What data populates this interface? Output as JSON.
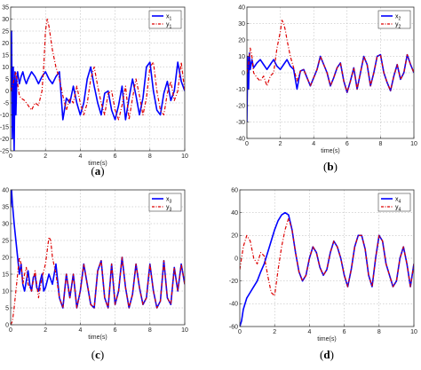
{
  "chart_data": [
    {
      "type": "line",
      "caption": "(a)",
      "xlabel": "time(s)",
      "xlim": [
        0,
        10
      ],
      "ylim": [
        -25,
        35
      ],
      "xticks": [
        0,
        2,
        4,
        6,
        8,
        10
      ],
      "yticks": [
        -25,
        -20,
        -15,
        -10,
        -5,
        0,
        5,
        10,
        15,
        20,
        25,
        30,
        35
      ],
      "grid": true,
      "legend_position": "top-right",
      "series": [
        {
          "name": "x1",
          "color": "#0000ff",
          "style": "solid",
          "x": [
            0,
            0.05,
            0.1,
            0.15,
            0.2,
            0.25,
            0.3,
            0.35,
            0.4,
            0.5,
            0.6,
            0.7,
            0.8,
            0.9,
            1.0,
            1.2,
            1.4,
            1.6,
            1.8,
            2.0,
            2.2,
            2.4,
            2.6,
            2.8,
            3.0,
            3.2,
            3.4,
            3.6,
            3.8,
            4.0,
            4.2,
            4.4,
            4.6,
            4.8,
            5.0,
            5.2,
            5.4,
            5.6,
            5.8,
            6.0,
            6.2,
            6.4,
            6.6,
            6.8,
            7.0,
            7.2,
            7.4,
            7.6,
            7.8,
            8.0,
            8.2,
            8.4,
            8.6,
            8.8,
            9.0,
            9.2,
            9.4,
            9.6,
            9.8,
            10.0
          ],
          "y": [
            0,
            25,
            -20,
            10,
            -25,
            8,
            -10,
            5,
            8,
            3,
            6,
            8,
            5,
            3,
            5,
            8,
            6,
            3,
            6,
            8,
            5,
            3,
            6,
            8,
            -12,
            -3,
            -5,
            2,
            -5,
            -10,
            -5,
            5,
            10,
            2,
            -5,
            -10,
            -1,
            0,
            -8,
            -12,
            -6,
            2,
            -12,
            -3,
            5,
            -2,
            -10,
            -3,
            10,
            12,
            0,
            -8,
            -10,
            -1,
            4,
            -4,
            0,
            12,
            4,
            0
          ]
        },
        {
          "name": "y1",
          "color": "#dd0000",
          "style": "dashdot",
          "x": [
            0,
            0.1,
            0.2,
            0.3,
            0.4,
            0.5,
            0.6,
            0.8,
            1.0,
            1.2,
            1.4,
            1.6,
            1.8,
            1.9,
            2.0,
            2.1,
            2.2,
            2.3,
            2.4,
            2.6,
            2.8,
            3.0,
            3.2,
            3.4,
            3.6,
            3.8,
            4.0,
            4.2,
            4.4,
            4.6,
            4.8,
            5.0,
            5.2,
            5.4,
            5.6,
            5.8,
            6.0,
            6.2,
            6.4,
            6.6,
            6.8,
            7.0,
            7.2,
            7.4,
            7.6,
            7.8,
            8.0,
            8.2,
            8.4,
            8.6,
            8.8,
            9.0,
            9.2,
            9.4,
            9.6,
            9.8,
            10.0
          ],
          "y": [
            0,
            2,
            5,
            8,
            3,
            -2,
            -3,
            -4,
            -6,
            -8,
            -5,
            -6,
            0,
            10,
            25,
            30,
            27,
            22,
            17,
            10,
            5,
            -2,
            -8,
            -3,
            -5,
            2,
            -5,
            -10,
            -5,
            5,
            10,
            2,
            -5,
            -10,
            -1,
            0,
            -8,
            -12,
            -6,
            2,
            -12,
            -3,
            5,
            -2,
            -10,
            -3,
            10,
            12,
            0,
            -8,
            -10,
            -1,
            4,
            -4,
            0,
            12,
            0
          ]
        }
      ]
    },
    {
      "type": "line",
      "caption": "(b)",
      "xlabel": "time(s)",
      "xlim": [
        0,
        10
      ],
      "ylim": [
        -40,
        40
      ],
      "xticks": [
        0,
        2,
        4,
        6,
        8,
        10
      ],
      "yticks": [
        -40,
        -30,
        -20,
        -10,
        0,
        10,
        20,
        30,
        40
      ],
      "grid": true,
      "legend_position": "top-right",
      "series": [
        {
          "name": "x2",
          "color": "#0000ff",
          "style": "solid",
          "x": [
            0,
            0.05,
            0.1,
            0.15,
            0.2,
            0.3,
            0.4,
            0.6,
            0.8,
            1.0,
            1.2,
            1.4,
            1.6,
            1.8,
            2.0,
            2.2,
            2.4,
            2.6,
            2.8,
            3.0,
            3.2,
            3.4,
            3.6,
            3.8,
            4.0,
            4.2,
            4.4,
            4.6,
            4.8,
            5.0,
            5.2,
            5.4,
            5.6,
            5.8,
            6.0,
            6.2,
            6.4,
            6.6,
            6.8,
            7.0,
            7.2,
            7.4,
            7.6,
            7.8,
            8.0,
            8.2,
            8.4,
            8.6,
            8.8,
            9.0,
            9.2,
            9.4,
            9.6,
            9.8,
            10.0
          ],
          "y": [
            -30,
            10,
            -10,
            12,
            2,
            8,
            3,
            6,
            8,
            5,
            2,
            5,
            8,
            4,
            2,
            5,
            8,
            4,
            2,
            -10,
            1,
            2,
            -3,
            -8,
            -3,
            2,
            10,
            5,
            0,
            -8,
            -3,
            3,
            6,
            -5,
            -12,
            -5,
            3,
            -10,
            0,
            10,
            5,
            -8,
            0,
            10,
            11,
            0,
            -6,
            -11,
            -2,
            5,
            -4,
            0,
            11,
            5,
            0
          ]
        },
        {
          "name": "y2",
          "color": "#dd0000",
          "style": "dashdot",
          "x": [
            0,
            0.1,
            0.2,
            0.3,
            0.4,
            0.6,
            0.8,
            1.0,
            1.2,
            1.4,
            1.6,
            1.8,
            2.0,
            2.1,
            2.2,
            2.3,
            2.4,
            2.6,
            2.8,
            3.0,
            3.2,
            3.4,
            3.6,
            3.8,
            4.0,
            4.2,
            4.4,
            4.6,
            4.8,
            5.0,
            5.2,
            5.4,
            5.6,
            5.8,
            6.0,
            6.2,
            6.4,
            6.6,
            6.8,
            7.0,
            7.2,
            7.4,
            7.6,
            7.8,
            8.0,
            8.2,
            8.4,
            8.6,
            8.8,
            9.0,
            9.2,
            9.4,
            9.6,
            9.8,
            10.0
          ],
          "y": [
            0,
            5,
            15,
            10,
            0,
            -3,
            -5,
            -2,
            -8,
            -2,
            0,
            15,
            25,
            32,
            30,
            26,
            20,
            10,
            3,
            -5,
            1,
            2,
            -3,
            -8,
            -3,
            2,
            10,
            5,
            0,
            -8,
            -3,
            3,
            6,
            -5,
            -12,
            -5,
            3,
            -10,
            0,
            10,
            5,
            -8,
            0,
            10,
            11,
            0,
            -6,
            -11,
            -2,
            5,
            -4,
            0,
            11,
            5,
            0
          ]
        }
      ]
    },
    {
      "type": "line",
      "caption": "(c)",
      "xlabel": "time(s)",
      "xlim": [
        0,
        10
      ],
      "ylim": [
        0,
        40
      ],
      "xticks": [
        0,
        2,
        4,
        6,
        8,
        10
      ],
      "yticks": [
        0,
        5,
        10,
        15,
        20,
        25,
        30,
        35,
        40
      ],
      "grid": true,
      "legend_position": "top-right",
      "series": [
        {
          "name": "x3",
          "color": "#0000ff",
          "style": "solid",
          "x": [
            0,
            0.05,
            0.1,
            0.2,
            0.3,
            0.4,
            0.5,
            0.6,
            0.7,
            0.8,
            0.9,
            1.0,
            1.1,
            1.2,
            1.3,
            1.4,
            1.5,
            1.6,
            1.7,
            1.8,
            1.9,
            2.0,
            2.2,
            2.4,
            2.6,
            2.8,
            3.0,
            3.2,
            3.4,
            3.6,
            3.8,
            4.0,
            4.2,
            4.4,
            4.6,
            4.8,
            5.0,
            5.2,
            5.4,
            5.6,
            5.8,
            6.0,
            6.2,
            6.4,
            6.6,
            6.8,
            7.0,
            7.2,
            7.4,
            7.6,
            7.8,
            8.0,
            8.2,
            8.4,
            8.6,
            8.8,
            9.0,
            9.2,
            9.4,
            9.6,
            9.8,
            10.0
          ],
          "y": [
            35,
            40,
            36,
            30,
            25,
            20,
            15,
            18,
            12,
            10,
            13,
            16,
            12,
            10,
            14,
            15,
            11,
            10,
            13,
            15,
            10,
            11,
            15,
            12,
            18,
            8,
            5,
            15,
            8,
            15,
            5,
            10,
            18,
            12,
            6,
            5,
            16,
            19,
            8,
            5,
            18,
            6,
            10,
            20,
            11,
            5,
            9,
            18,
            11,
            6,
            8,
            18,
            10,
            5,
            7,
            19,
            8,
            6,
            17,
            10,
            18,
            12
          ]
        },
        {
          "name": "y3",
          "color": "#dd0000",
          "style": "dashdot",
          "x": [
            0,
            0.1,
            0.2,
            0.3,
            0.4,
            0.5,
            0.6,
            0.7,
            0.8,
            0.9,
            1.0,
            1.2,
            1.4,
            1.6,
            1.8,
            2.0,
            2.1,
            2.2,
            2.3,
            2.4,
            2.6,
            2.8,
            3.0,
            3.2,
            3.4,
            3.6,
            3.8,
            4.0,
            4.2,
            4.4,
            4.6,
            4.8,
            5.0,
            5.2,
            5.4,
            5.6,
            5.8,
            6.0,
            6.2,
            6.4,
            6.6,
            6.8,
            7.0,
            7.2,
            7.4,
            7.6,
            7.8,
            8.0,
            8.2,
            8.4,
            8.6,
            8.8,
            9.0,
            9.2,
            9.4,
            9.6,
            9.8,
            10.0
          ],
          "y": [
            0,
            1,
            5,
            10,
            15,
            20,
            18,
            12,
            15,
            17,
            12,
            10,
            16,
            8,
            14,
            18,
            22,
            26,
            25,
            20,
            15,
            8,
            5,
            15,
            8,
            15,
            5,
            10,
            18,
            12,
            6,
            5,
            16,
            19,
            8,
            5,
            18,
            6,
            10,
            20,
            11,
            5,
            9,
            18,
            11,
            6,
            8,
            18,
            10,
            5,
            7,
            19,
            8,
            6,
            17,
            10,
            18,
            12
          ]
        }
      ]
    },
    {
      "type": "line",
      "caption": "(d)",
      "xlabel": "time(s)",
      "xlim": [
        0,
        10
      ],
      "ylim": [
        -60,
        60
      ],
      "xticks": [
        0,
        2,
        4,
        6,
        8,
        10
      ],
      "yticks": [
        -60,
        -40,
        -20,
        0,
        20,
        40,
        60
      ],
      "grid": true,
      "legend_position": "top-right",
      "series": [
        {
          "name": "x4",
          "color": "#0000ff",
          "style": "solid",
          "x": [
            0,
            0.1,
            0.2,
            0.4,
            0.6,
            0.8,
            1.0,
            1.2,
            1.4,
            1.6,
            1.8,
            2.0,
            2.2,
            2.4,
            2.6,
            2.8,
            3.0,
            3.2,
            3.4,
            3.6,
            3.8,
            4.0,
            4.2,
            4.4,
            4.6,
            4.8,
            5.0,
            5.2,
            5.4,
            5.6,
            5.8,
            6.0,
            6.2,
            6.4,
            6.6,
            6.8,
            7.0,
            7.2,
            7.4,
            7.6,
            7.8,
            8.0,
            8.2,
            8.4,
            8.6,
            8.8,
            9.0,
            9.2,
            9.4,
            9.6,
            9.8,
            10.0
          ],
          "y": [
            -60,
            -55,
            -45,
            -35,
            -30,
            -25,
            -20,
            -12,
            -5,
            5,
            15,
            25,
            33,
            38,
            40,
            38,
            25,
            5,
            -12,
            -20,
            -15,
            0,
            10,
            5,
            -8,
            -15,
            -10,
            5,
            15,
            10,
            0,
            -15,
            -25,
            -10,
            10,
            20,
            20,
            8,
            -15,
            -25,
            0,
            20,
            15,
            -5,
            -15,
            -25,
            -20,
            0,
            10,
            -5,
            -25,
            -5
          ]
        },
        {
          "name": "y4",
          "color": "#dd0000",
          "style": "dashdot",
          "x": [
            0,
            0.2,
            0.4,
            0.6,
            0.8,
            1.0,
            1.2,
            1.4,
            1.6,
            1.8,
            2.0,
            2.2,
            2.4,
            2.6,
            2.8,
            3.0,
            3.2,
            3.4,
            3.6,
            3.8,
            4.0,
            4.2,
            4.4,
            4.6,
            4.8,
            5.0,
            5.2,
            5.4,
            5.6,
            5.8,
            6.0,
            6.2,
            6.4,
            6.6,
            6.8,
            7.0,
            7.2,
            7.4,
            7.6,
            7.8,
            8.0,
            8.2,
            8.4,
            8.6,
            8.8,
            9.0,
            9.2,
            9.4,
            9.6,
            9.8,
            10.0
          ],
          "y": [
            -10,
            10,
            20,
            15,
            0,
            -5,
            5,
            2,
            -15,
            -30,
            -33,
            -10,
            10,
            25,
            35,
            25,
            5,
            -12,
            -20,
            -15,
            0,
            10,
            5,
            -8,
            -15,
            -10,
            5,
            15,
            10,
            0,
            -15,
            -25,
            -10,
            10,
            20,
            20,
            8,
            -15,
            -25,
            0,
            20,
            15,
            -5,
            -15,
            -25,
            -20,
            0,
            10,
            -5,
            -25,
            -5
          ]
        }
      ]
    }
  ]
}
